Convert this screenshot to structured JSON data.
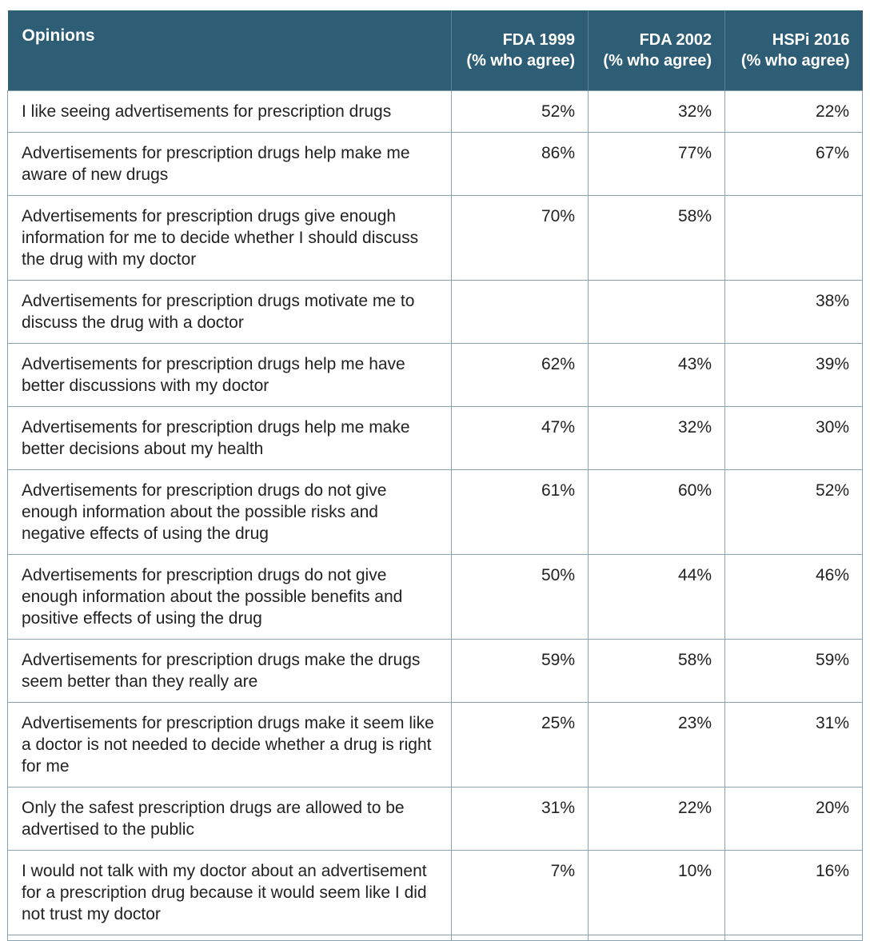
{
  "table": {
    "headers": [
      {
        "line1": "Opinions",
        "line2": ""
      },
      {
        "line1": "FDA 1999",
        "line2": "(% who agree)"
      },
      {
        "line1": "FDA 2002",
        "line2": "(% who agree)"
      },
      {
        "line1": "HSPi 2016",
        "line2": "(% who agree)"
      }
    ],
    "rows": [
      {
        "opinion": "I like seeing advertisements for prescription drugs",
        "fda1999": "52%",
        "fda2002": "32%",
        "hspi2016": "22%"
      },
      {
        "opinion": "Advertisements for prescription drugs help make me aware of new drugs",
        "fda1999": "86%",
        "fda2002": "77%",
        "hspi2016": "67%"
      },
      {
        "opinion": "Advertisements for prescription drugs give enough information for me to decide whether I should discuss the drug with my doctor",
        "fda1999": "70%",
        "fda2002": "58%",
        "hspi2016": ""
      },
      {
        "opinion": "Advertisements for prescription drugs motivate me to discuss the drug with a doctor",
        "fda1999": "",
        "fda2002": "",
        "hspi2016": "38%"
      },
      {
        "opinion": "Advertisements for prescription drugs help me have better discussions with my doctor",
        "fda1999": "62%",
        "fda2002": "43%",
        "hspi2016": "39%"
      },
      {
        "opinion": "Advertisements for prescription drugs help me make better decisions about my health",
        "fda1999": "47%",
        "fda2002": "32%",
        "hspi2016": "30%"
      },
      {
        "opinion": "Advertisements for prescription drugs do not give enough information about the possible risks and negative effects of using the drug",
        "fda1999": "61%",
        "fda2002": "60%",
        "hspi2016": "52%"
      },
      {
        "opinion": "Advertisements for prescription drugs do not give enough information about the possible benefits and positive effects of using the drug",
        "fda1999": "50%",
        "fda2002": "44%",
        "hspi2016": "46%"
      },
      {
        "opinion": "Advertisements for prescription drugs make the drugs seem better than they really are",
        "fda1999": "59%",
        "fda2002": "58%",
        "hspi2016": "59%"
      },
      {
        "opinion": "Advertisements for prescription drugs make it seem like a doctor is not needed to decide whether a drug is right for me",
        "fda1999": "25%",
        "fda2002": "23%",
        "hspi2016": "31%"
      },
      {
        "opinion": "Only the safest prescription drugs are allowed to be advertised to the public",
        "fda1999": "31%",
        "fda2002": "22%",
        "hspi2016": "20%"
      },
      {
        "opinion": "I would not talk with my doctor about an advertisement for a prescription drug because it would seem like I did not trust my doctor",
        "fda1999": "7%",
        "fda2002": "10%",
        "hspi2016": "16%"
      }
    ]
  },
  "colors": {
    "header_bg": "#2e5d76",
    "header_text": "#ffffff",
    "grid": "#8aa3b0"
  }
}
